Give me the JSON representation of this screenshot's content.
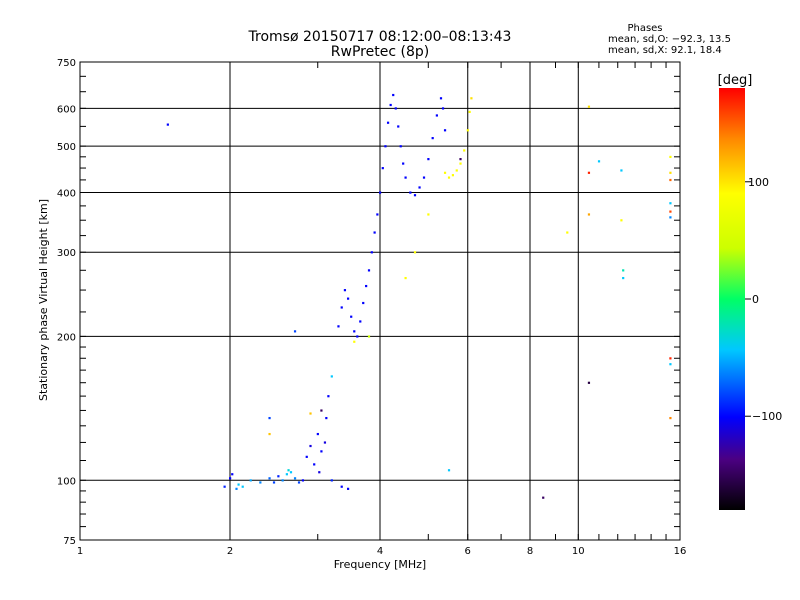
{
  "chart_data": {
    "type": "scatter",
    "title": "Tromsø 20150717 08:12:00–08:13:43",
    "subtitle": "RwPretec (8p)",
    "xlabel": "Frequency [MHz]",
    "ylabel": "Stationary phase Virtual Height [km]",
    "x_scale": "log",
    "y_scale": "log",
    "xlim": [
      1,
      16
    ],
    "ylim": [
      75,
      750
    ],
    "grid": true,
    "x_ticks": [
      1,
      2,
      4,
      6,
      8,
      10,
      16
    ],
    "y_ticks": [
      75,
      100,
      200,
      300,
      400,
      500,
      600,
      750
    ],
    "phase_box": {
      "title": "Phases",
      "line_o": "mean, sd,O: −92.3, 13.5",
      "line_x": "mean, sd,X:  92.1, 18.4"
    },
    "colorbar": {
      "label": "[deg]",
      "ticks": [
        100,
        0,
        -100
      ],
      "range": [
        -180,
        180
      ]
    },
    "points": [
      {
        "f": 1.5,
        "h": 555,
        "p": -100
      },
      {
        "f": 1.95,
        "h": 97,
        "p": -90
      },
      {
        "f": 2.0,
        "h": 101,
        "p": -100
      },
      {
        "f": 2.02,
        "h": 103,
        "p": -100
      },
      {
        "f": 2.06,
        "h": 96,
        "p": -60
      },
      {
        "f": 2.08,
        "h": 98,
        "p": -40
      },
      {
        "f": 2.12,
        "h": 97,
        "p": -40
      },
      {
        "f": 2.2,
        "h": 100,
        "p": -50
      },
      {
        "f": 2.3,
        "h": 99,
        "p": -60
      },
      {
        "f": 2.4,
        "h": 101,
        "p": -70
      },
      {
        "f": 2.45,
        "h": 99,
        "p": -80
      },
      {
        "f": 2.5,
        "h": 102,
        "p": -90
      },
      {
        "f": 2.55,
        "h": 100,
        "p": -60
      },
      {
        "f": 2.6,
        "h": 103,
        "p": -40
      },
      {
        "f": 2.62,
        "h": 105,
        "p": -30
      },
      {
        "f": 2.65,
        "h": 104,
        "p": -40
      },
      {
        "f": 2.7,
        "h": 101,
        "p": -60
      },
      {
        "f": 2.75,
        "h": 99,
        "p": -80
      },
      {
        "f": 2.8,
        "h": 100,
        "p": -100
      },
      {
        "f": 2.85,
        "h": 112,
        "p": -100
      },
      {
        "f": 2.9,
        "h": 118,
        "p": -110
      },
      {
        "f": 2.95,
        "h": 108,
        "p": -100
      },
      {
        "f": 3.0,
        "h": 125,
        "p": -100
      },
      {
        "f": 3.02,
        "h": 104,
        "p": -110
      },
      {
        "f": 3.05,
        "h": 115,
        "p": -100
      },
      {
        "f": 3.1,
        "h": 120,
        "p": -110
      },
      {
        "f": 3.12,
        "h": 135,
        "p": -100
      },
      {
        "f": 3.15,
        "h": 150,
        "p": -100
      },
      {
        "f": 3.2,
        "h": 100,
        "p": -90
      },
      {
        "f": 3.35,
        "h": 97,
        "p": -100
      },
      {
        "f": 3.45,
        "h": 96,
        "p": -100
      },
      {
        "f": 3.2,
        "h": 165,
        "p": -40
      },
      {
        "f": 2.4,
        "h": 135,
        "p": -80
      },
      {
        "f": 2.7,
        "h": 205,
        "p": -80
      },
      {
        "f": 2.9,
        "h": 138,
        "p": 120
      },
      {
        "f": 2.4,
        "h": 125,
        "p": 120
      },
      {
        "f": 3.05,
        "h": 140,
        "p": -150
      },
      {
        "f": 3.3,
        "h": 210,
        "p": -100
      },
      {
        "f": 3.35,
        "h": 230,
        "p": -100
      },
      {
        "f": 3.4,
        "h": 250,
        "p": -100
      },
      {
        "f": 3.45,
        "h": 240,
        "p": -100
      },
      {
        "f": 3.5,
        "h": 220,
        "p": -100
      },
      {
        "f": 3.55,
        "h": 205,
        "p": -100
      },
      {
        "f": 3.6,
        "h": 200,
        "p": -100
      },
      {
        "f": 3.65,
        "h": 215,
        "p": -100
      },
      {
        "f": 3.7,
        "h": 235,
        "p": -100
      },
      {
        "f": 3.75,
        "h": 255,
        "p": -100
      },
      {
        "f": 3.8,
        "h": 275,
        "p": -100
      },
      {
        "f": 3.85,
        "h": 300,
        "p": -100
      },
      {
        "f": 3.9,
        "h": 330,
        "p": -100
      },
      {
        "f": 3.95,
        "h": 360,
        "p": -100
      },
      {
        "f": 4.0,
        "h": 400,
        "p": -100
      },
      {
        "f": 4.05,
        "h": 450,
        "p": -100
      },
      {
        "f": 4.1,
        "h": 500,
        "p": -100
      },
      {
        "f": 4.15,
        "h": 560,
        "p": -100
      },
      {
        "f": 4.2,
        "h": 610,
        "p": -100
      },
      {
        "f": 4.25,
        "h": 640,
        "p": -100
      },
      {
        "f": 4.3,
        "h": 600,
        "p": -100
      },
      {
        "f": 4.35,
        "h": 550,
        "p": -100
      },
      {
        "f": 4.4,
        "h": 500,
        "p": -100
      },
      {
        "f": 4.45,
        "h": 460,
        "p": -100
      },
      {
        "f": 4.5,
        "h": 430,
        "p": -100
      },
      {
        "f": 4.6,
        "h": 400,
        "p": -100
      },
      {
        "f": 4.7,
        "h": 395,
        "p": -100
      },
      {
        "f": 4.8,
        "h": 410,
        "p": -100
      },
      {
        "f": 4.9,
        "h": 430,
        "p": -100
      },
      {
        "f": 5.0,
        "h": 470,
        "p": -100
      },
      {
        "f": 5.1,
        "h": 520,
        "p": -100
      },
      {
        "f": 5.2,
        "h": 580,
        "p": -100
      },
      {
        "f": 5.3,
        "h": 630,
        "p": -100
      },
      {
        "f": 5.35,
        "h": 600,
        "p": -100
      },
      {
        "f": 5.4,
        "h": 540,
        "p": -100
      },
      {
        "f": 5.4,
        "h": 440,
        "p": 100
      },
      {
        "f": 5.5,
        "h": 430,
        "p": 100
      },
      {
        "f": 5.6,
        "h": 435,
        "p": 100
      },
      {
        "f": 5.7,
        "h": 445,
        "p": 100
      },
      {
        "f": 5.8,
        "h": 460,
        "p": 100
      },
      {
        "f": 5.9,
        "h": 490,
        "p": 100
      },
      {
        "f": 6.0,
        "h": 540,
        "p": 100
      },
      {
        "f": 6.05,
        "h": 590,
        "p": 100
      },
      {
        "f": 6.1,
        "h": 630,
        "p": 110
      },
      {
        "f": 5.8,
        "h": 470,
        "p": -150
      },
      {
        "f": 5.0,
        "h": 360,
        "p": 100
      },
      {
        "f": 4.7,
        "h": 300,
        "p": 100
      },
      {
        "f": 4.5,
        "h": 265,
        "p": 100
      },
      {
        "f": 3.55,
        "h": 195,
        "p": 100
      },
      {
        "f": 3.8,
        "h": 200,
        "p": 40
      },
      {
        "f": 5.5,
        "h": 105,
        "p": -40
      },
      {
        "f": 8.5,
        "h": 92,
        "p": -150
      },
      {
        "f": 9.5,
        "h": 330,
        "p": 100
      },
      {
        "f": 10.5,
        "h": 605,
        "p": 110
      },
      {
        "f": 10.5,
        "h": 440,
        "p": 170
      },
      {
        "f": 10.5,
        "h": 360,
        "p": 130
      },
      {
        "f": 10.5,
        "h": 160,
        "p": -160
      },
      {
        "f": 11.0,
        "h": 465,
        "p": -40
      },
      {
        "f": 12.2,
        "h": 445,
        "p": -40
      },
      {
        "f": 12.2,
        "h": 350,
        "p": 100
      },
      {
        "f": 12.3,
        "h": 275,
        "p": -20
      },
      {
        "f": 12.3,
        "h": 265,
        "p": -40
      },
      {
        "f": 15.3,
        "h": 475,
        "p": 100
      },
      {
        "f": 15.3,
        "h": 440,
        "p": 110
      },
      {
        "f": 15.3,
        "h": 425,
        "p": 150
      },
      {
        "f": 15.3,
        "h": 380,
        "p": -40
      },
      {
        "f": 15.3,
        "h": 365,
        "p": 160
      },
      {
        "f": 15.3,
        "h": 355,
        "p": -60
      },
      {
        "f": 15.3,
        "h": 180,
        "p": 170
      },
      {
        "f": 15.3,
        "h": 175,
        "p": -40
      },
      {
        "f": 15.3,
        "h": 135,
        "p": 140
      }
    ]
  }
}
